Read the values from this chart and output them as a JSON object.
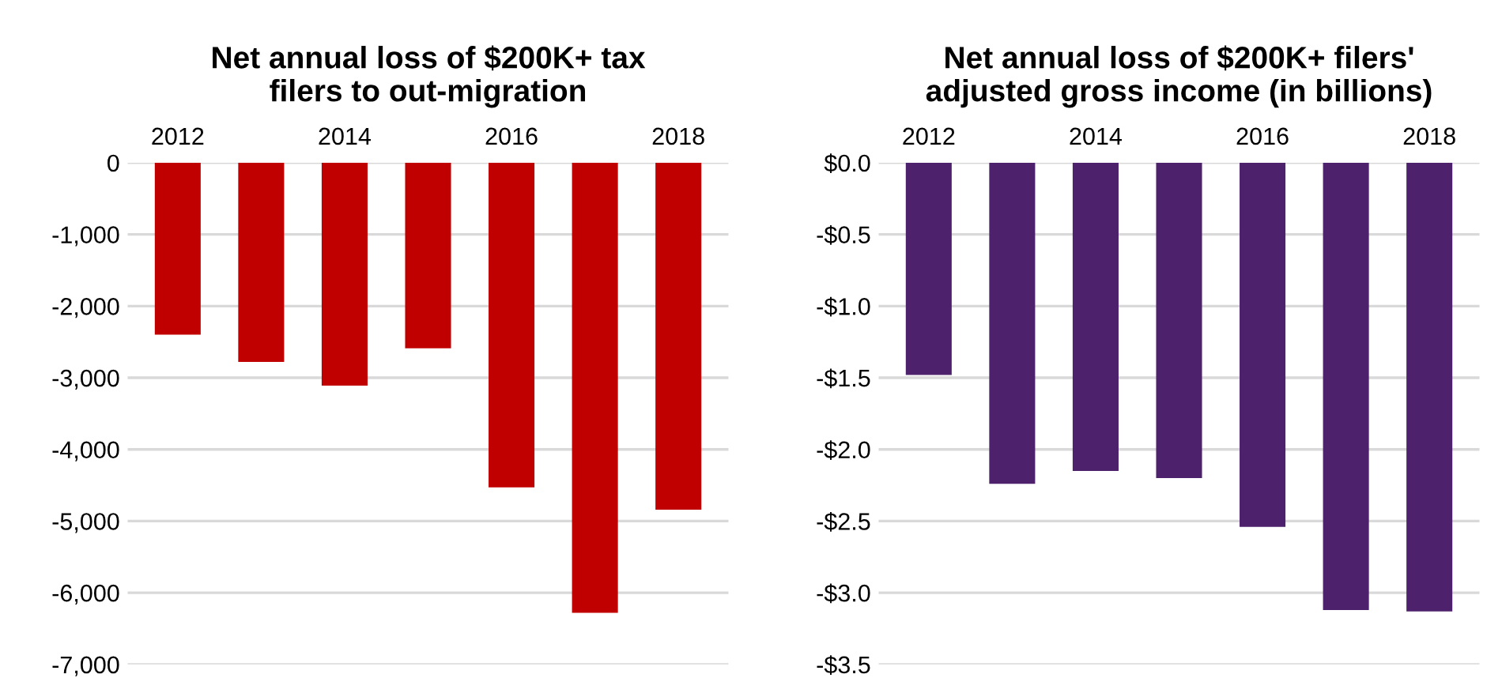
{
  "chart_data": [
    {
      "type": "bar",
      "title": "Net annual loss of $200K+ tax\nfilers to out-migration",
      "categories": [
        "2012",
        null,
        "2014",
        null,
        "2016",
        null,
        "2018"
      ],
      "series": [
        {
          "color": "#c00000",
          "values": [
            -2400,
            -2780,
            -3110,
            -2590,
            -4530,
            -6280,
            -4840
          ]
        }
      ],
      "ylim": [
        -7000,
        0
      ],
      "yticks": [
        {
          "value": 0,
          "label": "0"
        },
        {
          "value": -1000,
          "label": "-1,000"
        },
        {
          "value": -2000,
          "label": "-2,000"
        },
        {
          "value": -3000,
          "label": "-3,000"
        },
        {
          "value": -4000,
          "label": "-4,000"
        },
        {
          "value": -5000,
          "label": "-5,000"
        },
        {
          "value": -6000,
          "label": "-6,000"
        },
        {
          "value": -7000,
          "label": "-7,000"
        }
      ],
      "grid": "y"
    },
    {
      "type": "bar",
      "title": "Net annual loss of $200K+ filers'\nadjusted gross income (in billions)",
      "categories": [
        "2012",
        null,
        "2014",
        null,
        "2016",
        null,
        "2018"
      ],
      "series": [
        {
          "color": "#4d216b",
          "values": [
            -1.48,
            -2.24,
            -2.15,
            -2.2,
            -2.54,
            -3.12,
            -3.13
          ]
        }
      ],
      "ylim": [
        -3.5,
        0
      ],
      "yticks": [
        {
          "value": 0,
          "label": "$0.0"
        },
        {
          "value": -0.5,
          "label": "-$0.5"
        },
        {
          "value": -1.0,
          "label": "-$1.0"
        },
        {
          "value": -1.5,
          "label": "-$1.5"
        },
        {
          "value": -2.0,
          "label": "-$2.0"
        },
        {
          "value": -2.5,
          "label": "-$2.5"
        },
        {
          "value": -3.0,
          "label": "-$3.0"
        },
        {
          "value": -3.5,
          "label": "-$3.5"
        }
      ],
      "grid": "y"
    }
  ]
}
